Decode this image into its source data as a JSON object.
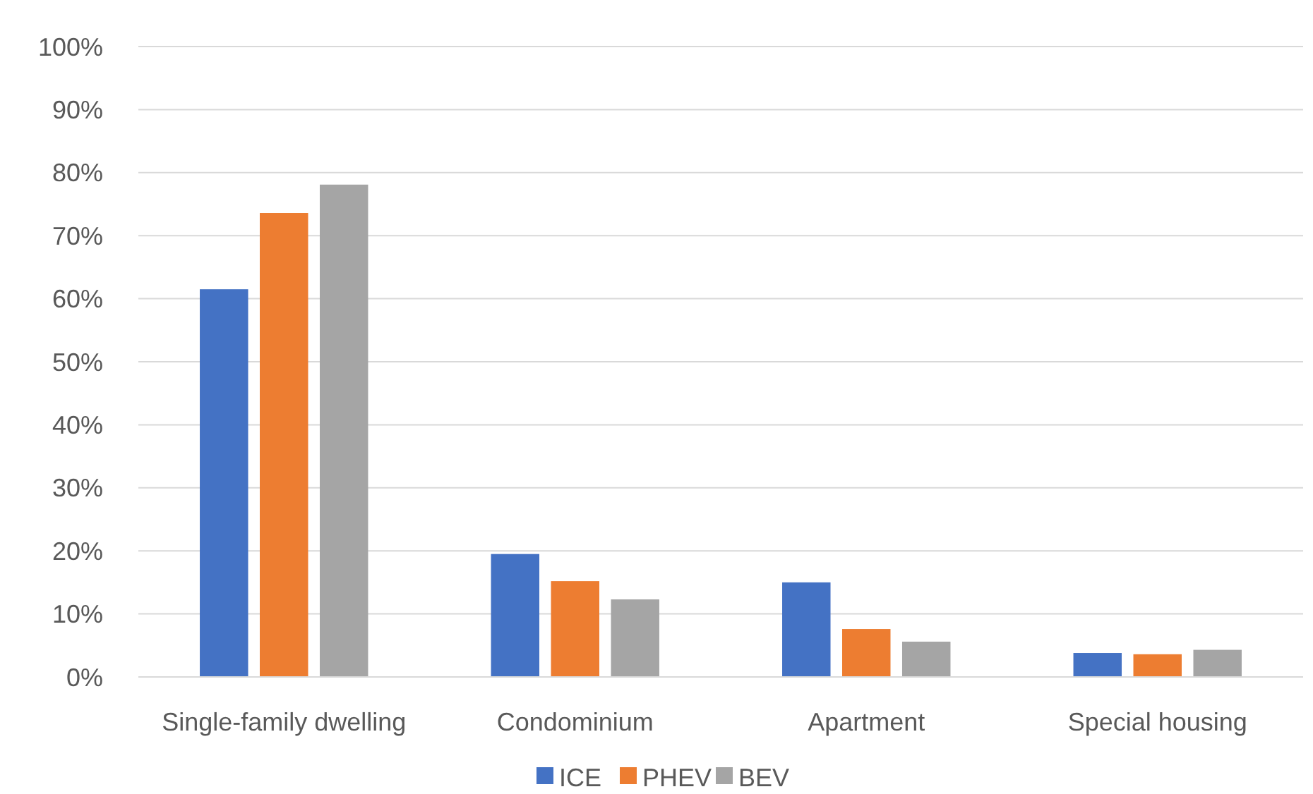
{
  "chart_data": {
    "type": "bar",
    "categories": [
      "Single-family dwelling",
      "Condominium",
      "Apartment",
      "Special housing"
    ],
    "series": [
      {
        "name": "ICE",
        "color": "#4472c4",
        "values": [
          61.5,
          19.5,
          15.0,
          3.8
        ]
      },
      {
        "name": "PHEV",
        "color": "#ed7d31",
        "values": [
          73.6,
          15.2,
          7.6,
          3.6
        ]
      },
      {
        "name": "BEV",
        "color": "#a5a5a5",
        "values": [
          78.1,
          12.3,
          5.6,
          4.3
        ]
      }
    ],
    "ylim": [
      0,
      100
    ],
    "yticks": [
      {
        "value": 0,
        "label": "0%"
      },
      {
        "value": 10,
        "label": "10%"
      },
      {
        "value": 20,
        "label": "20%"
      },
      {
        "value": 30,
        "label": "30%"
      },
      {
        "value": 40,
        "label": "40%"
      },
      {
        "value": 50,
        "label": "50%"
      },
      {
        "value": 60,
        "label": "60%"
      },
      {
        "value": 70,
        "label": "70%"
      },
      {
        "value": 80,
        "label": "80%"
      },
      {
        "value": 90,
        "label": "90%"
      },
      {
        "value": 100,
        "label": "100%"
      }
    ],
    "grid": "y",
    "legend": "bottom"
  }
}
